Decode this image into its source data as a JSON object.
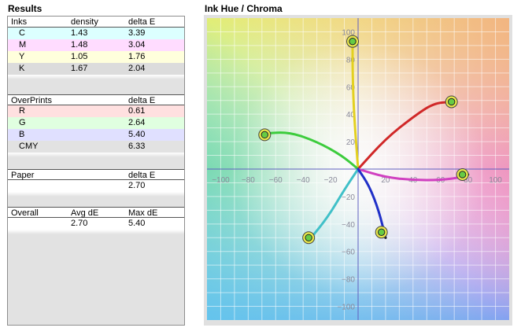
{
  "results": {
    "title": "Results",
    "inks": {
      "headers": [
        "Inks",
        "density",
        "delta E"
      ],
      "rows": [
        {
          "name": "C",
          "density": "1.43",
          "deltaE": "3.39",
          "color": "#dcffff"
        },
        {
          "name": "M",
          "density": "1.48",
          "deltaE": "3.04",
          "color": "#ffdcff"
        },
        {
          "name": "Y",
          "density": "1.05",
          "deltaE": "1.76",
          "color": "#ffffdc"
        },
        {
          "name": "K",
          "density": "1.67",
          "deltaE": "2.04",
          "color": "#dcdcdc"
        }
      ]
    },
    "overprints": {
      "headers": [
        "OverPrints",
        "delta E"
      ],
      "rows": [
        {
          "name": "R",
          "deltaE": "0.61",
          "color": "#ffe0e0"
        },
        {
          "name": "G",
          "deltaE": "2.64",
          "color": "#e0ffe0"
        },
        {
          "name": "B",
          "deltaE": "5.40",
          "color": "#e0e0ff"
        },
        {
          "name": "CMY",
          "deltaE": "6.33",
          "color": "#e2e2e2"
        }
      ]
    },
    "paper": {
      "headers": [
        "Paper",
        "delta E"
      ],
      "value": "2.70"
    },
    "overall": {
      "headers": [
        "Overall",
        "Avg dE",
        "Max dE"
      ],
      "avg": "2.70",
      "max": "5.40"
    }
  },
  "chart": {
    "title": "Ink Hue / Chroma"
  },
  "chart_data": {
    "type": "line",
    "title": "Ink Hue / Chroma",
    "xlim": [
      -110,
      110
    ],
    "ylim": [
      -110,
      110
    ],
    "x_ticks": [
      -100,
      -80,
      -60,
      -40,
      -20,
      20,
      40,
      60,
      80,
      100
    ],
    "y_ticks": [
      100,
      80,
      60,
      40,
      20,
      -20,
      -40,
      -60,
      -80,
      -100
    ],
    "grid": true,
    "series": [
      {
        "color": "#e3d020",
        "points": [
          [
            0,
            0
          ],
          [
            -3,
            40
          ],
          [
            -4,
            70
          ],
          [
            -4,
            93
          ]
        ],
        "target": [
          -4,
          93
        ]
      },
      {
        "color": "#d02828",
        "points": [
          [
            0,
            0
          ],
          [
            20,
            22
          ],
          [
            40,
            38
          ],
          [
            55,
            48
          ],
          [
            68,
            49
          ]
        ],
        "target": [
          68,
          49
        ]
      },
      {
        "color": "#d040c0",
        "points": [
          [
            0,
            0
          ],
          [
            20,
            -6
          ],
          [
            40,
            -8
          ],
          [
            60,
            -8
          ],
          [
            75,
            -6
          ],
          [
            80,
            -4
          ]
        ],
        "target": [
          76,
          -4
        ]
      },
      {
        "color": "#3ccc3c",
        "points": [
          [
            0,
            0
          ],
          [
            -12,
            10
          ],
          [
            -30,
            20
          ],
          [
            -50,
            27
          ],
          [
            -68,
            26
          ]
        ],
        "target": [
          -68,
          25
        ]
      },
      {
        "color": "#40c0c8",
        "points": [
          [
            0,
            0
          ],
          [
            -10,
            -15
          ],
          [
            -22,
            -35
          ],
          [
            -35,
            -51
          ]
        ],
        "target": [
          -36,
          -50
        ]
      },
      {
        "color": "#2030c8",
        "points": [
          [
            0,
            0
          ],
          [
            8,
            -12
          ],
          [
            15,
            -30
          ],
          [
            20,
            -50
          ]
        ],
        "target": [
          17,
          -46
        ]
      }
    ]
  }
}
